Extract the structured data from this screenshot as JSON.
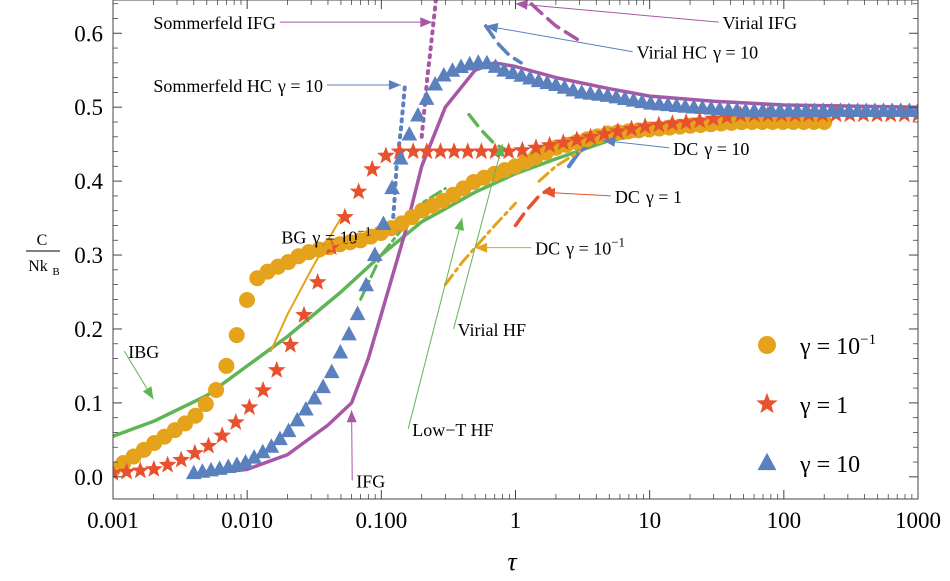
{
  "chart_data": {
    "type": "scatter",
    "xlabel": "τ",
    "ylabel_numerator": "C",
    "ylabel_denominator": "Nk",
    "ylabel_denominator_sub": "B",
    "xscale": "log",
    "xlim": [
      0.001,
      1000
    ],
    "ylim": [
      -0.03,
      0.645
    ],
    "x_ticks": [
      0.001,
      0.01,
      0.1,
      1,
      10,
      100,
      1000
    ],
    "x_tick_labels": [
      "0.001",
      "0.010",
      "0.100",
      "1",
      "10",
      "100",
      "1000"
    ],
    "y_ticks": [
      0.0,
      0.1,
      0.2,
      0.3,
      0.4,
      0.5,
      0.6
    ],
    "y_tick_labels": [
      "0.0",
      "0.1",
      "0.2",
      "0.3",
      "0.4",
      "0.5",
      "0.6"
    ],
    "grid": false,
    "legend_position": "bottom-right",
    "legend": [
      {
        "label": "γ = 10⁻¹",
        "marker": "circle",
        "color": "#E5A21B"
      },
      {
        "label": "γ = 1",
        "marker": "star",
        "color": "#E8512D"
      },
      {
        "label": "γ = 10",
        "marker": "triangle",
        "color": "#5B80BE"
      }
    ],
    "series": [
      {
        "name": "γ = 10⁻¹",
        "marker": "circle",
        "color": "#E5A21B",
        "x": [
          0.001,
          0.0015,
          0.002,
          0.003,
          0.004,
          0.005,
          0.006,
          0.007,
          0.008,
          0.01,
          0.012,
          0.015,
          0.02,
          0.025,
          0.03,
          0.04,
          0.05,
          0.07,
          0.1,
          0.15,
          0.2,
          0.3,
          0.5,
          0.7,
          1,
          2,
          5,
          10,
          20,
          50,
          100,
          200
        ],
        "y": [
          0.01,
          0.03,
          0.045,
          0.065,
          0.08,
          0.1,
          0.12,
          0.15,
          0.18,
          0.24,
          0.27,
          0.28,
          0.29,
          0.3,
          0.305,
          0.31,
          0.315,
          0.32,
          0.33,
          0.345,
          0.36,
          0.375,
          0.4,
          0.41,
          0.42,
          0.445,
          0.465,
          0.47,
          0.475,
          0.48,
          0.48,
          0.48
        ]
      },
      {
        "name": "γ = 1",
        "marker": "star",
        "color": "#E8512D",
        "x": [
          0.001,
          0.002,
          0.003,
          0.005,
          0.007,
          0.01,
          0.015,
          0.02,
          0.03,
          0.04,
          0.05,
          0.06,
          0.07,
          0.08,
          0.1,
          0.12,
          0.15,
          0.2,
          0.3,
          0.5,
          0.7,
          1,
          2,
          5,
          10,
          20,
          50,
          100,
          200,
          500,
          1000
        ],
        "y": [
          0.005,
          0.01,
          0.02,
          0.04,
          0.06,
          0.09,
          0.13,
          0.17,
          0.24,
          0.3,
          0.34,
          0.37,
          0.39,
          0.41,
          0.43,
          0.44,
          0.44,
          0.44,
          0.44,
          0.44,
          0.44,
          0.44,
          0.45,
          0.465,
          0.475,
          0.48,
          0.49,
          0.49,
          0.49,
          0.49,
          0.49
        ]
      },
      {
        "name": "γ = 10",
        "marker": "triangle",
        "color": "#5B80BE",
        "x": [
          0.004,
          0.006,
          0.008,
          0.01,
          0.015,
          0.02,
          0.03,
          0.04,
          0.05,
          0.06,
          0.07,
          0.08,
          0.1,
          0.12,
          0.15,
          0.2,
          0.25,
          0.3,
          0.4,
          0.5,
          0.6,
          0.7,
          0.8,
          1,
          1.5,
          2,
          3,
          5,
          7,
          10,
          20,
          50,
          100,
          200,
          500,
          1000
        ],
        "y": [
          0.005,
          0.01,
          0.015,
          0.02,
          0.04,
          0.06,
          0.1,
          0.13,
          0.17,
          0.2,
          0.23,
          0.27,
          0.33,
          0.39,
          0.45,
          0.5,
          0.53,
          0.545,
          0.555,
          0.56,
          0.56,
          0.555,
          0.55,
          0.545,
          0.535,
          0.53,
          0.52,
          0.515,
          0.51,
          0.505,
          0.5,
          0.495,
          0.495,
          0.495,
          0.495,
          0.495
        ]
      }
    ],
    "curves": [
      {
        "color": "#5FB556",
        "style": "solid",
        "width": 3.5,
        "x": [
          0.001,
          0.002,
          0.005,
          0.01,
          0.02,
          0.05,
          0.1,
          0.2,
          0.5,
          1,
          2,
          5,
          10,
          20,
          50,
          100,
          1000
        ],
        "y": [
          0.055,
          0.075,
          0.11,
          0.15,
          0.19,
          0.25,
          0.3,
          0.345,
          0.385,
          0.41,
          0.43,
          0.455,
          0.465,
          0.475,
          0.485,
          0.49,
          0.495
        ]
      },
      {
        "color": "#A856A6",
        "style": "solid",
        "width": 3.5,
        "x": [
          0.004,
          0.01,
          0.02,
          0.04,
          0.06,
          0.08,
          0.1,
          0.15,
          0.2,
          0.3,
          0.5,
          0.7,
          1,
          2,
          5,
          10,
          30,
          100,
          1000
        ],
        "y": [
          0.002,
          0.01,
          0.03,
          0.07,
          0.1,
          0.16,
          0.22,
          0.33,
          0.42,
          0.5,
          0.55,
          0.56,
          0.555,
          0.54,
          0.525,
          0.515,
          0.508,
          0.503,
          0.5
        ]
      },
      {
        "color": "#E5A21B",
        "style": "solid",
        "width": 2,
        "x": [
          0.015,
          0.02,
          0.03,
          0.04,
          0.05
        ],
        "y": [
          0.17,
          0.22,
          0.28,
          0.32,
          0.35
        ]
      },
      {
        "color": "#A856A6",
        "style": "dotted",
        "width": 4,
        "x": [
          0.2,
          0.21,
          0.22,
          0.23,
          0.24,
          0.25,
          0.26
        ],
        "y": [
          0.46,
          0.5,
          0.54,
          0.57,
          0.6,
          0.63,
          0.66
        ]
      },
      {
        "color": "#5B80BE",
        "style": "dotted",
        "width": 4,
        "x": [
          0.12,
          0.125,
          0.13,
          0.14,
          0.15
        ],
        "y": [
          0.33,
          0.37,
          0.42,
          0.47,
          0.53
        ]
      },
      {
        "color": "#5FB556",
        "style": "dashed",
        "width": 3.5,
        "x": [
          0.45,
          0.55,
          0.7,
          0.9
        ],
        "y": [
          0.49,
          0.47,
          0.45,
          0.44
        ]
      },
      {
        "color": "#5FB556",
        "style": "dashdot",
        "width": 3,
        "x": [
          0.07,
          0.1,
          0.15,
          0.2,
          0.3
        ],
        "y": [
          0.24,
          0.3,
          0.34,
          0.37,
          0.39
        ]
      },
      {
        "color": "#A856A6",
        "style": "dashed",
        "width": 3.5,
        "x": [
          1.0,
          1.5,
          2.0,
          3.0
        ],
        "y": [
          0.66,
          0.63,
          0.61,
          0.59
        ]
      },
      {
        "color": "#5B80BE",
        "style": "dashed",
        "width": 3.5,
        "x": [
          0.6,
          0.75,
          0.9,
          1.1
        ],
        "y": [
          0.61,
          0.585,
          0.57,
          0.56
        ]
      },
      {
        "color": "#5B80BE",
        "style": "solid",
        "width": 4,
        "x": [
          2.5,
          3,
          4,
          5
        ],
        "y": [
          0.42,
          0.44,
          0.455,
          0.46
        ]
      },
      {
        "color": "#E8512D",
        "style": "dashed",
        "width": 3.5,
        "x": [
          1.0,
          1.2,
          1.5,
          1.8
        ],
        "y": [
          0.34,
          0.36,
          0.38,
          0.39
        ]
      },
      {
        "color": "#E5A21B",
        "style": "dashdot",
        "width": 3,
        "x": [
          0.3,
          0.4,
          0.5,
          0.7,
          1.0
        ],
        "y": [
          0.26,
          0.29,
          0.31,
          0.34,
          0.37
        ]
      },
      {
        "color": "#E5A21B",
        "style": "dashdot",
        "width": 3,
        "x": [
          1.5,
          2.0,
          3.0
        ],
        "y": [
          0.4,
          0.42,
          0.44
        ]
      }
    ],
    "annotations": [
      {
        "text": "Sommerfeld IFG",
        "color": "#A856A6",
        "point": [
          0.24,
          0.615
        ],
        "anchor": "end",
        "text_at": [
          0.002,
          0.615
        ]
      },
      {
        "text": "Sommerfeld HC",
        "gamma_suffix": "γ = 10",
        "color": "#5B80BE",
        "point": [
          0.14,
          0.53
        ],
        "anchor": "end",
        "text_at": [
          0.002,
          0.53
        ]
      },
      {
        "text": "Virial IFG",
        "color": "#A856A6",
        "point": [
          1.0,
          0.64
        ],
        "anchor": "start",
        "text_at": [
          35,
          0.615
        ]
      },
      {
        "text": "Virial HC",
        "gamma_suffix": "γ = 10",
        "color": "#5B80BE",
        "point": [
          0.6,
          0.61
        ],
        "anchor": "start",
        "text_at": [
          8,
          0.575
        ]
      },
      {
        "text": "DC",
        "gamma_suffix": "γ = 10",
        "color": "#5B80BE",
        "point": [
          4.5,
          0.455
        ],
        "anchor": "start",
        "text_at": [
          15,
          0.445
        ]
      },
      {
        "text": "DC",
        "gamma_suffix": "γ = 1",
        "color": "#E8512D",
        "point": [
          1.6,
          0.385
        ],
        "anchor": "start",
        "text_at": [
          5.5,
          0.38
        ]
      },
      {
        "text": "DC",
        "gamma_suffix": "γ = 10",
        "gamma_exp": "−1",
        "color": "#E5A21B",
        "point": [
          0.5,
          0.31
        ],
        "anchor": "start",
        "text_at": [
          1.4,
          0.31
        ]
      },
      {
        "text": "BG",
        "gamma_suffix": "γ = 10",
        "gamma_exp": "−1",
        "color": "#E5A21B",
        "point": [
          0.035,
          0.31
        ],
        "anchor": "end",
        "text_at": [
          0.018,
          0.325
        ]
      },
      {
        "text": "IBG",
        "color": "#5FB556",
        "point": [
          0.002,
          0.105
        ],
        "anchor": "start",
        "text_at": [
          0.0013,
          0.17
        ]
      },
      {
        "text": "Virial HF",
        "color": "#5FB556",
        "point": [
          0.8,
          0.45
        ],
        "anchor": "start",
        "text_at": [
          0.37,
          0.2
        ]
      },
      {
        "text": "Low−T HF",
        "color": "#5FB556",
        "point": [
          0.4,
          0.35
        ],
        "anchor": "start",
        "text_at": [
          0.17,
          0.065
        ]
      },
      {
        "text": "IFG",
        "color": "#A856A6",
        "point": [
          0.06,
          0.09
        ],
        "anchor": "start",
        "text_at": [
          0.065,
          -0.005
        ]
      }
    ]
  }
}
